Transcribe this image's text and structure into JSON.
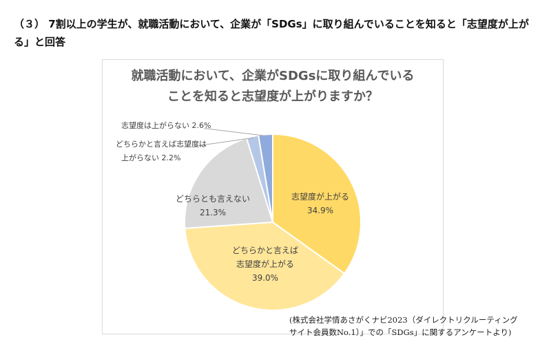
{
  "heading": {
    "line1": "（３） 7割以上の学生が、就職活動において、企業が「SDGs」に取り組んでいることを知ると「志望度が上が",
    "line2": "る」と回答"
  },
  "chart_data": {
    "type": "pie",
    "title_line1": "就職活動において、企業がSDGsに取り組んでいる",
    "title_line2": "ことを知ると志望度が上がりますか？",
    "slices": [
      {
        "label_lines": [
          "志望度が上がる"
        ],
        "value": 34.9,
        "value_label": "34.9%",
        "color": "#ffd966"
      },
      {
        "label_lines": [
          "どちらかと言えば",
          "志望度が上がる"
        ],
        "value": 39.0,
        "value_label": "39.0%",
        "color": "#ffe699"
      },
      {
        "label_lines": [
          "どちらとも言えない"
        ],
        "value": 21.3,
        "value_label": "21.3%",
        "color": "#d9d9d9"
      },
      {
        "label_lines": [
          "どちらかと言えば志望度は",
          "上がらない"
        ],
        "value": 2.2,
        "value_label": "2.2%",
        "color": "#b4c7e7"
      },
      {
        "label_lines": [
          "志望度は上がらない"
        ],
        "value": 2.6,
        "value_label": "2.6%",
        "color": "#8faadc"
      }
    ]
  },
  "source_note": {
    "line1": "(株式会社学情あさがくナビ2023（ダイレクトリクルーティング",
    "line2": "サイト会員数No.1）」での「SDGs」に関するアンケートより)"
  }
}
